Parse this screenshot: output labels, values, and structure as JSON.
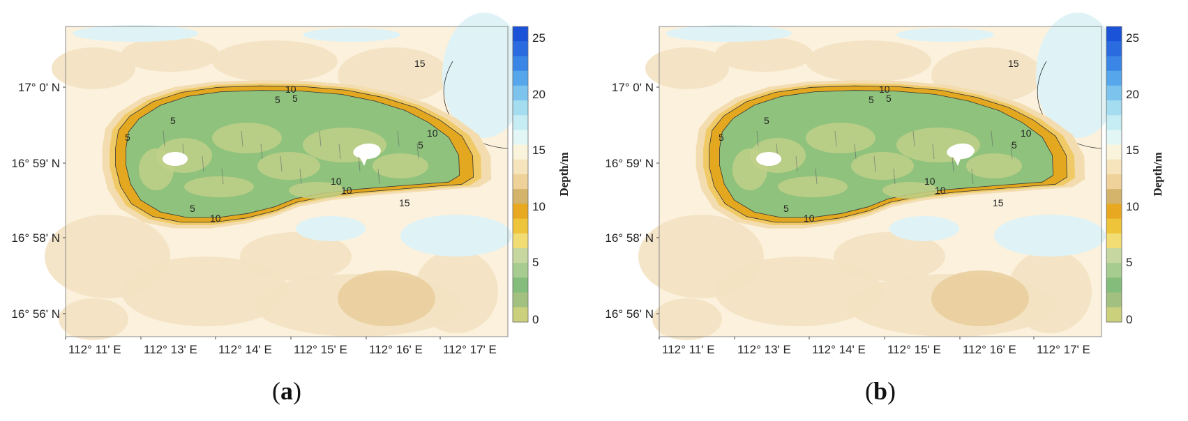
{
  "panels": [
    {
      "id": "a",
      "caption_open": "(",
      "caption_letter": "a",
      "caption_close": ")",
      "y_ticks": [
        "17° 0' N",
        "16° 59' N",
        "16° 58' N",
        "16° 56' N"
      ],
      "x_ticks": [
        "112° 11' E",
        "112° 13' E",
        "112° 14' E",
        "112° 15' E",
        "112° 16' E",
        "112° 17' E"
      ],
      "contour_labels": [
        "10",
        "5",
        "5",
        "5",
        "10",
        "10",
        "5",
        "5",
        "10",
        "5",
        "10",
        "15",
        "15"
      ]
    },
    {
      "id": "b",
      "caption_open": "(",
      "caption_letter": "b",
      "caption_close": ")",
      "y_ticks": [
        "17° 0' N",
        "16° 59' N",
        "16° 58' N",
        "16° 56' N"
      ],
      "x_ticks": [
        "112° 11' E",
        "112° 13' E",
        "112° 14' E",
        "112° 15' E",
        "112° 16' E",
        "112° 17' E"
      ],
      "contour_labels": [
        "10",
        "5",
        "5",
        "5",
        "10",
        "10",
        "5",
        "5",
        "10",
        "5",
        "10",
        "15",
        "15"
      ]
    }
  ],
  "colorbar": {
    "title": "Depth/m",
    "ticks": [
      "25",
      "20",
      "15",
      "10",
      "5",
      "0"
    ],
    "colors": [
      "#1a52d8",
      "#2a6be0",
      "#3a86e6",
      "#56a6ec",
      "#7cc4ee",
      "#a4dcf0",
      "#c6ecf4",
      "#e2f6f6",
      "#fbf4dc",
      "#f6e4bc",
      "#efd29a",
      "#d4b46a",
      "#e8a820",
      "#eec43a",
      "#f2dc74",
      "#c6d8a0",
      "#a6cc90",
      "#84bc7c",
      "#a2c080",
      "#cbd07c"
    ]
  },
  "palette": {
    "sea": "#fbf1dc",
    "sea_light": "#f3e2c2",
    "shallow_blue": "#dff3f6",
    "reef_rim": "#e3a81f",
    "reef_rim_light": "#efca66",
    "lagoon": "#8fc27c",
    "lagoon_light": "#bfd08a",
    "land": "#ffffff"
  }
}
